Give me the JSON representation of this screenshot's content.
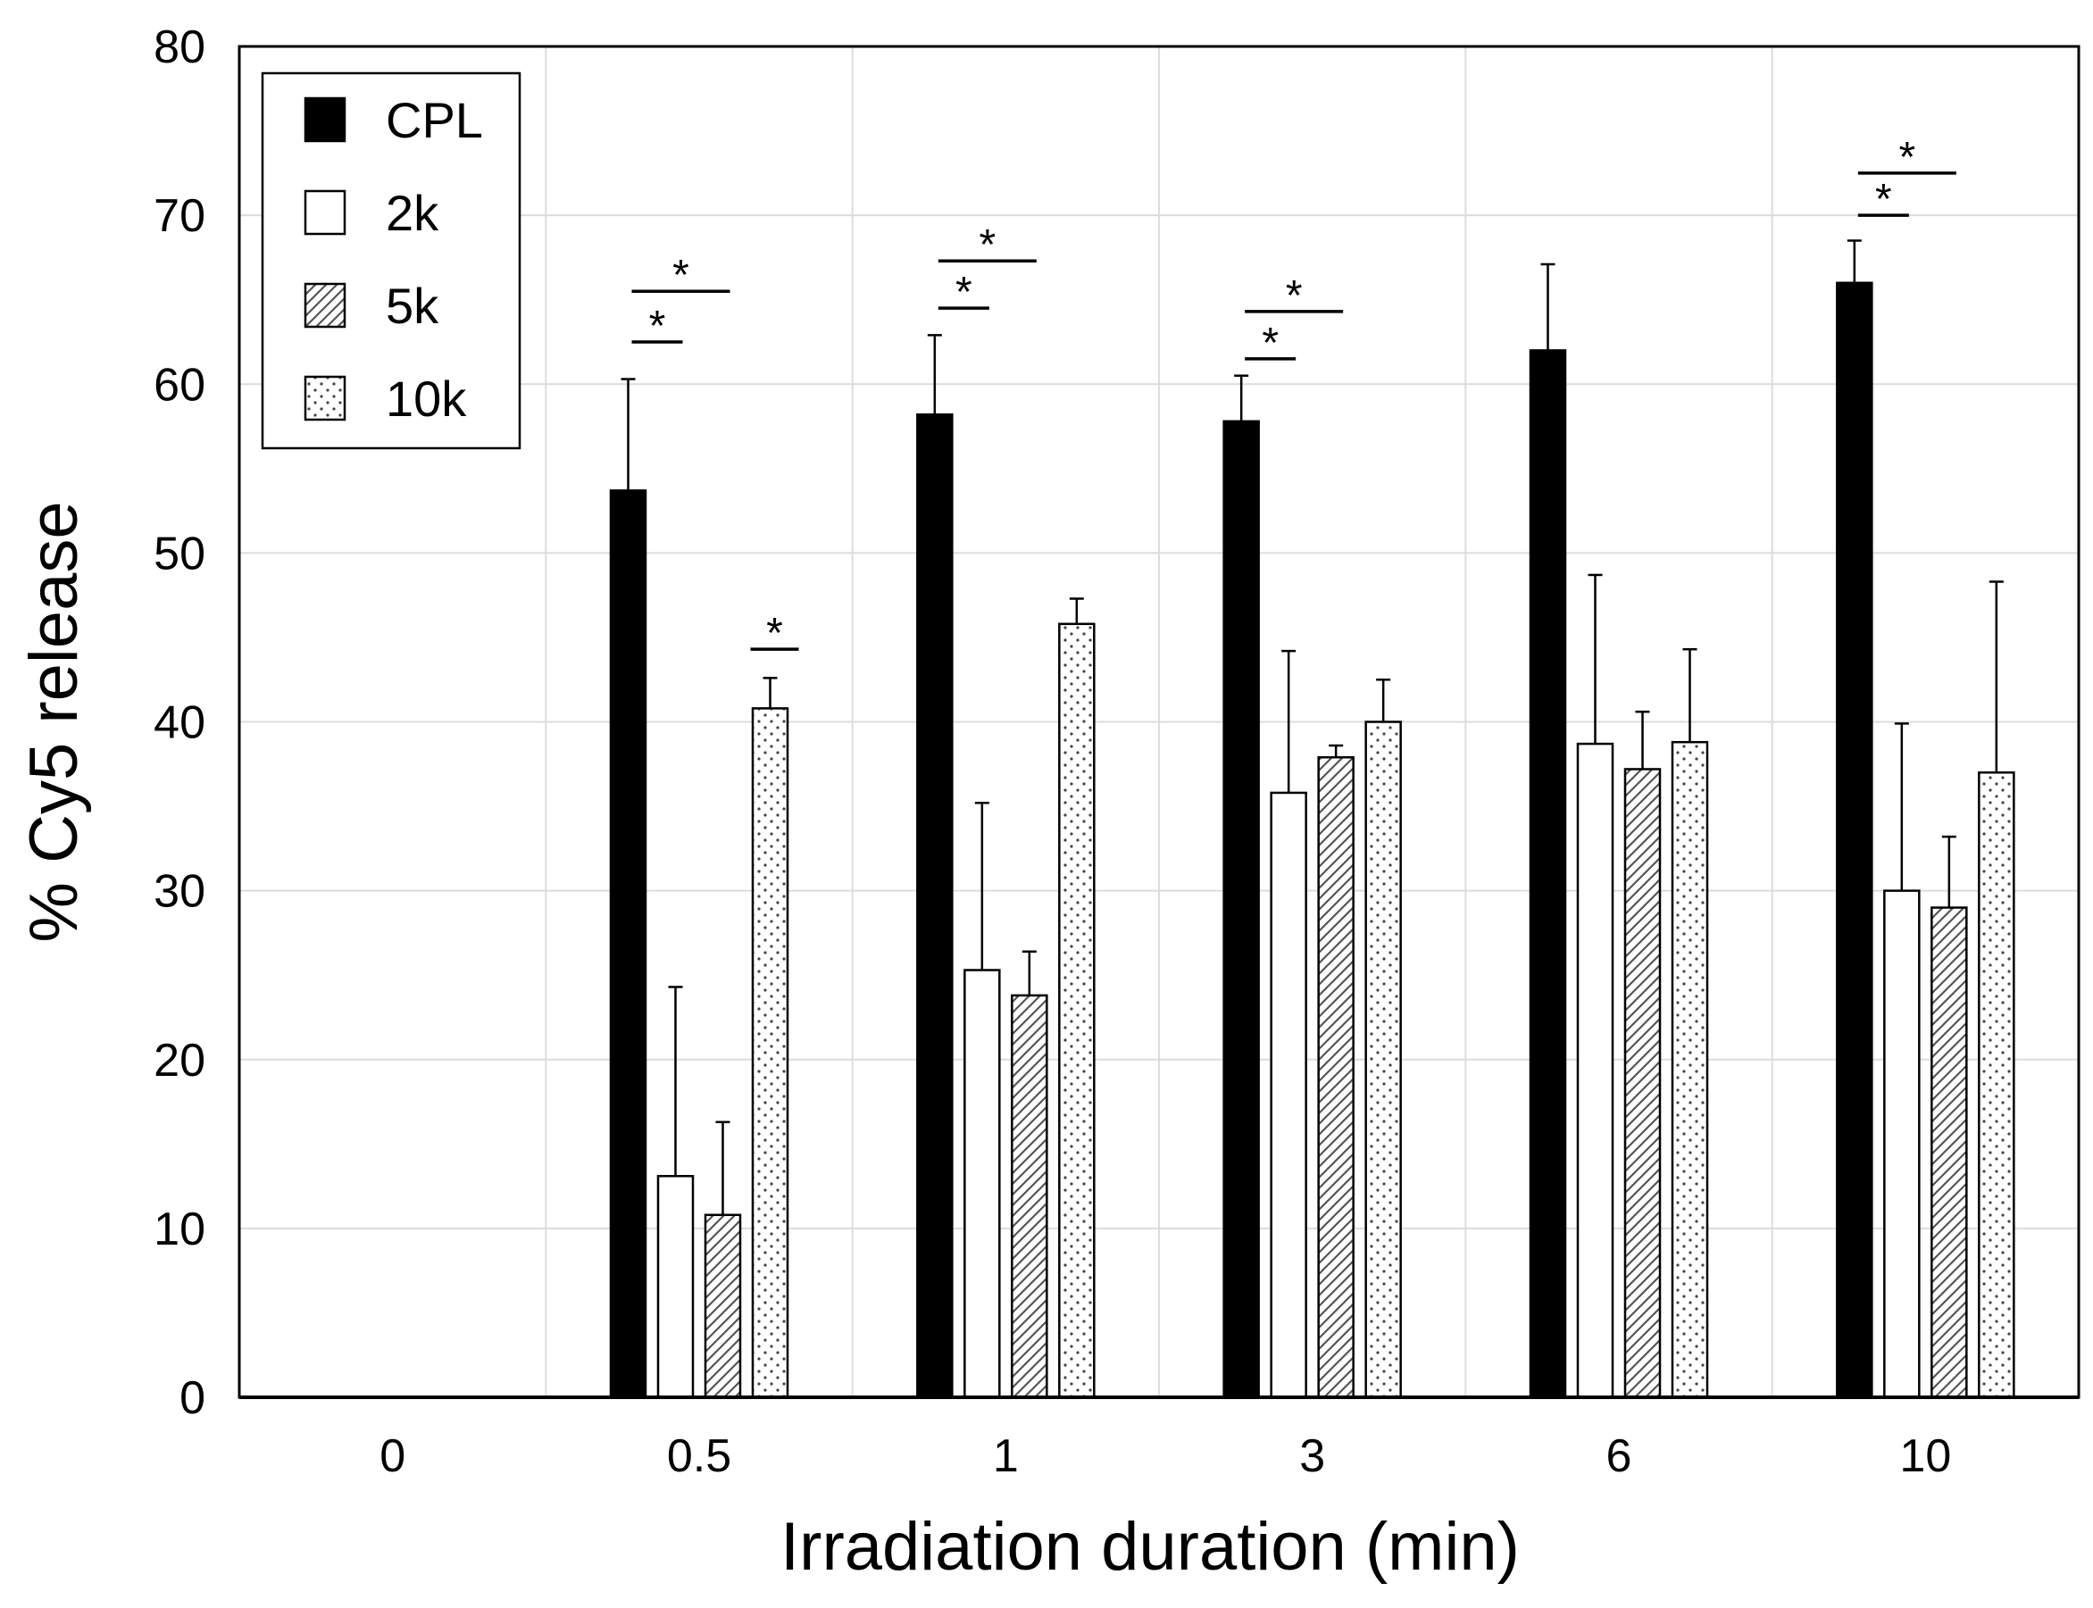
{
  "chart_data": {
    "type": "bar",
    "title": "",
    "xlabel": "Irradiation duration (min)",
    "ylabel": "% Cy5 release",
    "ylim": [
      0,
      80
    ],
    "yticks": [
      0,
      10,
      20,
      30,
      40,
      50,
      60,
      70,
      80
    ],
    "grid": true,
    "legend_position": "top-left",
    "categories": [
      "0",
      "0.5",
      "1",
      "3",
      "6",
      "10"
    ],
    "series": [
      {
        "name": "CPL",
        "pattern": "solid-black",
        "values": [
          0,
          53.7,
          58.2,
          57.8,
          62.0,
          66.0
        ],
        "errors": [
          0,
          6.6,
          4.7,
          2.7,
          5.1,
          2.5
        ]
      },
      {
        "name": "2k",
        "pattern": "white",
        "values": [
          0,
          13.1,
          25.3,
          35.8,
          38.7,
          30.0
        ],
        "errors": [
          0,
          11.2,
          9.9,
          8.4,
          10.0,
          9.9
        ]
      },
      {
        "name": "5k",
        "pattern": "diagonal-hatch",
        "values": [
          0,
          10.8,
          23.8,
          37.9,
          37.2,
          29.0
        ],
        "errors": [
          0,
          5.5,
          2.6,
          0.7,
          3.4,
          4.2
        ]
      },
      {
        "name": "10k",
        "pattern": "dots",
        "values": [
          0,
          40.8,
          45.8,
          40.0,
          38.8,
          37.0
        ],
        "errors": [
          0,
          1.8,
          1.5,
          2.5,
          5.5,
          11.3
        ]
      }
    ],
    "significance": [
      {
        "category": "0.5",
        "from": "CPL",
        "to": "2k",
        "level": 62.5,
        "label": "*"
      },
      {
        "category": "0.5",
        "from": "CPL",
        "to": "5k",
        "level": 65.5,
        "label": "*"
      },
      {
        "category": "0.5",
        "from": "10k",
        "to": "10k",
        "level": 44.3,
        "label": "*"
      },
      {
        "category": "1",
        "from": "CPL",
        "to": "2k",
        "level": 64.5,
        "label": "*"
      },
      {
        "category": "1",
        "from": "CPL",
        "to": "5k",
        "level": 67.3,
        "label": "*"
      },
      {
        "category": "3",
        "from": "CPL",
        "to": "2k",
        "level": 61.5,
        "label": "*"
      },
      {
        "category": "3",
        "from": "CPL",
        "to": "5k",
        "level": 64.3,
        "label": "*"
      },
      {
        "category": "10",
        "from": "CPL",
        "to": "2k",
        "level": 70.0,
        "label": "*"
      },
      {
        "category": "10",
        "from": "CPL",
        "to": "5k",
        "level": 72.5,
        "label": "*"
      }
    ]
  }
}
